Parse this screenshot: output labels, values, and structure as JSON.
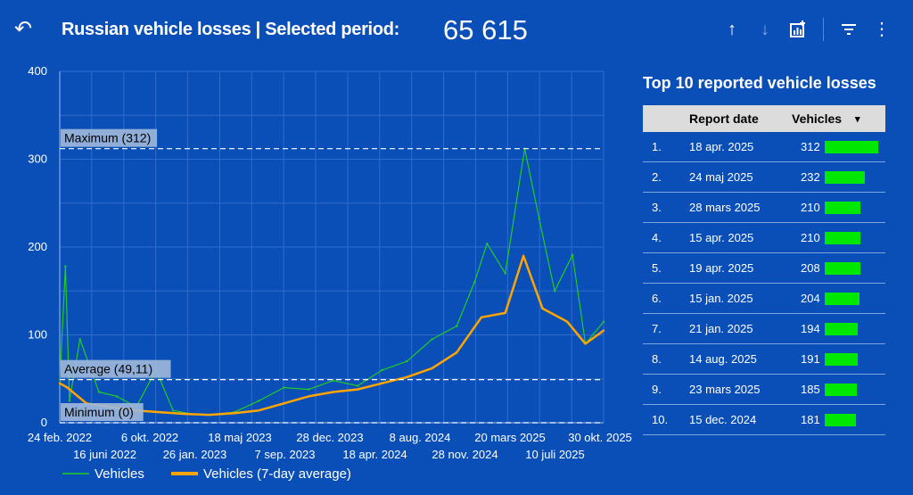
{
  "header": {
    "title": "Russian vehicle losses | Selected period:",
    "total": "65 615",
    "icons": [
      "undo-icon",
      "sort-up-icon",
      "sort-down-icon",
      "insights-icon",
      "filter-icon",
      "more-icon"
    ]
  },
  "table": {
    "title": "Top 10 reported vehicle losses",
    "col_date": "Report date",
    "col_vehicles": "Vehicles",
    "sort_indicator": "▾",
    "bar_color": "#00e800",
    "rows": [
      {
        "rank": "1.",
        "date": "18 apr. 2025",
        "value": 312
      },
      {
        "rank": "2.",
        "date": "24 maj 2025",
        "value": 232
      },
      {
        "rank": "3.",
        "date": "28 mars 2025",
        "value": 210
      },
      {
        "rank": "4.",
        "date": "15 apr. 2025",
        "value": 210
      },
      {
        "rank": "5.",
        "date": "19 apr. 2025",
        "value": 208
      },
      {
        "rank": "6.",
        "date": "15 jan. 2025",
        "value": 204
      },
      {
        "rank": "7.",
        "date": "21 jan. 2025",
        "value": 194
      },
      {
        "rank": "8.",
        "date": "14 aug. 2025",
        "value": 191
      },
      {
        "rank": "9.",
        "date": "23 mars 2025",
        "value": 185
      },
      {
        "rank": "10.",
        "date": "15 dec. 2024",
        "value": 181
      }
    ]
  },
  "chart_data": {
    "type": "line",
    "x_range": [
      "2022-02-24",
      "2025-10-30"
    ],
    "ylim": [
      0,
      400
    ],
    "y_ticks": [
      "0",
      "100",
      "200",
      "300",
      "400"
    ],
    "x_ticks_row1": [
      "24 feb. 2022",
      "6 okt. 2022",
      "18 maj 2023",
      "28 dec. 2023",
      "8 aug. 2024",
      "20 mars 2025",
      "30 okt. 2025"
    ],
    "x_ticks_row2": [
      "16 juni 2022",
      "26 jan. 2023",
      "7 sep. 2023",
      "18 apr. 2024",
      "28 nov. 2024",
      "10 juli 2025"
    ],
    "grid": true,
    "reference_lines": [
      {
        "label": "Maximum (312)",
        "value": 312
      },
      {
        "label": "Average (49,11)",
        "value": 49.11
      },
      {
        "label": "Minimum (0)",
        "value": 0
      }
    ],
    "series": [
      {
        "name": "Vehicles",
        "color": "#22cc22",
        "x": [
          "2022-02-24",
          "2022-03-10",
          "2022-03-20",
          "2022-04-15",
          "2022-06-01",
          "2022-07-15",
          "2022-09-01",
          "2022-10-20",
          "2022-12-01",
          "2023-01-15",
          "2023-03-01",
          "2023-05-01",
          "2023-07-01",
          "2023-09-01",
          "2023-11-01",
          "2024-01-01",
          "2024-03-01",
          "2024-05-01",
          "2024-07-01",
          "2024-09-01",
          "2024-11-01",
          "2024-12-15",
          "2025-01-15",
          "2025-03-01",
          "2025-04-18",
          "2025-05-24",
          "2025-07-01",
          "2025-08-14",
          "2025-09-15",
          "2025-10-30"
        ],
        "values": [
          45,
          178,
          25,
          95,
          35,
          30,
          18,
          60,
          14,
          10,
          9,
          12,
          25,
          40,
          38,
          48,
          42,
          60,
          70,
          95,
          110,
          160,
          204,
          170,
          312,
          232,
          150,
          191,
          90,
          115
        ]
      },
      {
        "name": "Vehicles (7-day average)",
        "color": "#ffa500",
        "x": [
          "2022-02-24",
          "2022-03-15",
          "2022-05-01",
          "2022-07-01",
          "2022-09-01",
          "2022-11-01",
          "2023-01-01",
          "2023-03-01",
          "2023-05-01",
          "2023-07-01",
          "2023-09-01",
          "2023-11-01",
          "2024-01-01",
          "2024-03-01",
          "2024-05-01",
          "2024-07-01",
          "2024-09-01",
          "2024-11-01",
          "2025-01-01",
          "2025-03-01",
          "2025-04-15",
          "2025-06-01",
          "2025-08-01",
          "2025-09-15",
          "2025-10-30"
        ],
        "values": [
          45,
          40,
          22,
          18,
          14,
          12,
          10,
          9,
          11,
          14,
          22,
          30,
          35,
          38,
          45,
          52,
          62,
          80,
          120,
          125,
          190,
          130,
          115,
          90,
          105
        ]
      }
    ]
  }
}
